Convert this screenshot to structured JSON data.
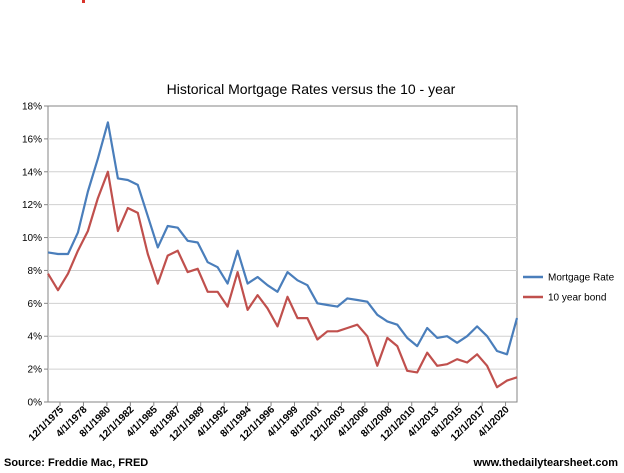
{
  "source_note": "Source: Freddie Mac, FRED",
  "website": "www.thedailytearsheet.com",
  "chart_data": {
    "type": "line",
    "title": "Historical Mortgage Rates versus the 10 - year",
    "xlabel": "",
    "ylabel": "",
    "ylim": [
      0,
      18
    ],
    "yticks": [
      "0%",
      "2%",
      "4%",
      "6%",
      "8%",
      "10%",
      "12%",
      "14%",
      "16%",
      "18%"
    ],
    "x_tick_labels": [
      "12/1/1975",
      "4/1/1978",
      "8/1/1980",
      "12/1/1982",
      "4/1/1985",
      "8/1/1987",
      "12/1/1989",
      "4/1/1992",
      "8/1/1994",
      "12/1/1996",
      "4/1/1999",
      "8/1/2001",
      "12/1/2003",
      "4/1/2006",
      "8/1/2008",
      "12/1/2010",
      "4/1/2013",
      "8/1/2015",
      "12/1/2017",
      "4/1/2020"
    ],
    "grid": "horizontal",
    "legend_position": "right",
    "series": [
      {
        "name": "Mortgage Rate",
        "color": "#4a7ebb",
        "values": [
          9.1,
          9.0,
          9.0,
          10.3,
          12.8,
          14.8,
          17.0,
          13.6,
          13.5,
          13.2,
          11.3,
          9.4,
          10.7,
          10.6,
          9.8,
          9.7,
          8.5,
          8.2,
          7.2,
          9.2,
          7.2,
          7.6,
          7.1,
          6.7,
          7.9,
          7.4,
          7.1,
          6.0,
          5.9,
          5.8,
          6.3,
          6.2,
          6.1,
          5.3,
          4.9,
          4.7,
          3.9,
          3.4,
          4.5,
          3.9,
          4.0,
          3.6,
          4.0,
          4.6,
          4.0,
          3.1,
          2.9,
          5.1
        ]
      },
      {
        "name": "10 year bond",
        "color": "#c0504d",
        "values": [
          7.8,
          6.8,
          7.8,
          9.2,
          10.4,
          12.4,
          14.0,
          10.4,
          11.8,
          11.5,
          9.0,
          7.2,
          8.9,
          9.2,
          7.9,
          8.1,
          6.7,
          6.7,
          5.8,
          7.9,
          5.6,
          6.5,
          5.7,
          4.6,
          6.4,
          5.1,
          5.1,
          3.8,
          4.3,
          4.3,
          4.5,
          4.7,
          4.0,
          2.2,
          3.9,
          3.4,
          1.9,
          1.8,
          3.0,
          2.2,
          2.3,
          2.6,
          2.4,
          2.9,
          2.2,
          0.9,
          1.3,
          1.5
        ]
      }
    ]
  }
}
